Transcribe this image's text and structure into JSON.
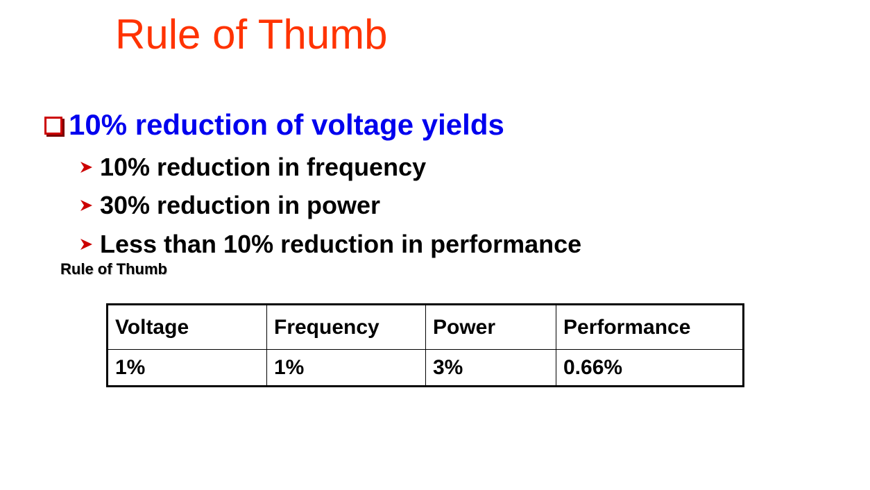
{
  "slide": {
    "title": "Rule of Thumb",
    "title_color": "#ff3300",
    "main_bullet": {
      "icon": "checkbox-icon",
      "text": "10% reduction of voltage yields",
      "color": "#0000ee"
    },
    "sub_bullets": [
      {
        "icon": "arrow-right-icon",
        "text": "10% reduction in frequency"
      },
      {
        "icon": "arrow-right-icon",
        "text": "30% reduction in power"
      },
      {
        "icon": "arrow-right-icon",
        "text": "Less than 10% reduction in performance"
      }
    ],
    "arrow_color": "#cc0000",
    "table_caption": "Rule of Thumb",
    "table": {
      "headers": [
        "Voltage",
        "Frequency",
        "Power",
        "Performance"
      ],
      "rows": [
        [
          "1%",
          "1%",
          "3%",
          "0.66%"
        ]
      ]
    }
  }
}
